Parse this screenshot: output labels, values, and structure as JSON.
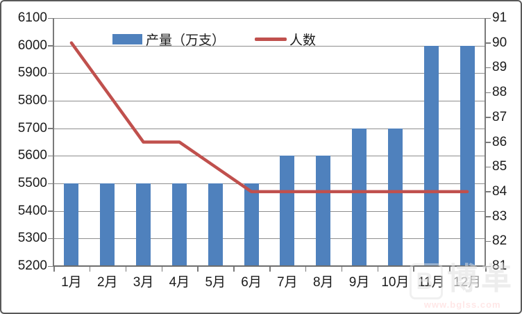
{
  "chart_data": {
    "type": "combo-bar-line",
    "title": "",
    "categories": [
      "1月",
      "2月",
      "3月",
      "4月",
      "5月",
      "6月",
      "7月",
      "8月",
      "9月",
      "10月",
      "11月",
      "12月"
    ],
    "series": [
      {
        "name": "产量（万支）",
        "type": "bar",
        "axis": "left",
        "color": "#4F81BD",
        "values": [
          5500,
          5500,
          5500,
          5500,
          5500,
          5500,
          5600,
          5600,
          5700,
          5700,
          6000,
          6000
        ]
      },
      {
        "name": "人数",
        "type": "line",
        "axis": "right",
        "color": "#C0504D",
        "values": [
          90,
          88,
          86,
          86,
          85,
          84,
          84,
          84,
          84,
          84,
          84,
          84
        ]
      }
    ],
    "left_axis": {
      "min": 5200,
      "max": 6100,
      "step": 100,
      "tick_labels": [
        "6100",
        "6000",
        "5900",
        "5800",
        "5700",
        "5600",
        "5500",
        "5400",
        "5300",
        "5200"
      ]
    },
    "right_axis": {
      "min": 81,
      "max": 91,
      "step": 1,
      "tick_labels": [
        "91",
        "90",
        "89",
        "88",
        "87",
        "86",
        "85",
        "84",
        "83",
        "82",
        "81"
      ]
    },
    "grid": true,
    "legend_position": "top-center"
  },
  "legend": {
    "bar_label": "产量（万支）",
    "line_label": "人数"
  },
  "watermark": {
    "logo": "B",
    "brand": "博革",
    "url": "www.bglss.com"
  },
  "colors": {
    "bar": "#4F81BD",
    "line": "#C0504D",
    "grid": "#8e8e8e",
    "axis": "#6e6e6e",
    "text": "#1a1a1a",
    "border": "#595959"
  }
}
